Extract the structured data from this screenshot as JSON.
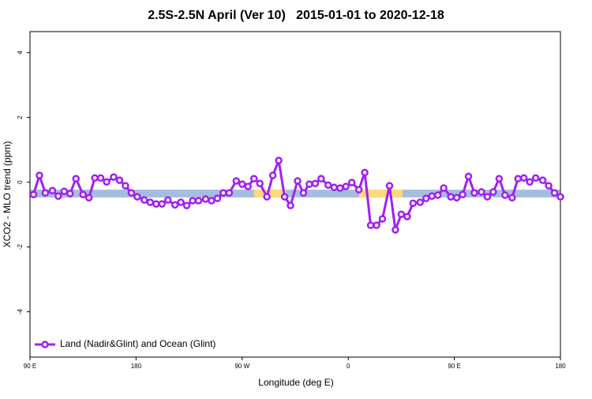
{
  "chart_data": {
    "type": "line",
    "title": "2.5S-2.5N April (Ver 10)   2015-01-01 to 2020-12-18",
    "x_label": "Longitude (deg E)",
    "y_label": "XCO2 - MLO trend (ppm)",
    "xlim": [
      90,
      540
    ],
    "ylim": [
      -5.4,
      4.65
    ],
    "xticks": [
      {
        "value": 90,
        "label": "90 E"
      },
      180,
      {
        "value": 270,
        "label": "90 W"
      },
      {
        "value": 360,
        "label": "0"
      },
      {
        "value": 450,
        "label": "90 E"
      },
      {
        "value": 540,
        "label": "180"
      }
    ],
    "yticks": [
      -4,
      -2,
      0,
      2,
      4
    ],
    "legend_position": "bottom-left",
    "surface_band": {
      "ylim": [
        -0.47,
        -0.23
      ],
      "ocean_color": "#a5bddf",
      "land_color": "#ffd97a",
      "land": [
        [
          280,
          307
        ],
        [
          369,
          406
        ]
      ]
    },
    "x": [
      93,
      98,
      103,
      109,
      114,
      119,
      124,
      129,
      135,
      140,
      145,
      150,
      155,
      161,
      166,
      171,
      176,
      181,
      187,
      192,
      197,
      202,
      207,
      213,
      218,
      223,
      228,
      233,
      239,
      244,
      249,
      254,
      259,
      265,
      270,
      275,
      280,
      285,
      291,
      296,
      301,
      306,
      311,
      317,
      322,
      327,
      332,
      337,
      343,
      348,
      353,
      358,
      363,
      369,
      374,
      379,
      384,
      389,
      395,
      400,
      405,
      410,
      415,
      421,
      426,
      431,
      436,
      441,
      447,
      452,
      457,
      462,
      467,
      473,
      478,
      483,
      488,
      493,
      499,
      504,
      509,
      514,
      519,
      525,
      530,
      535,
      540
    ],
    "series": [
      {
        "name": "Land (Nadir&Glint) and Ocean (Glint)",
        "color": "#a020f0",
        "values": [
          -0.38,
          0.21,
          -0.33,
          -0.26,
          -0.43,
          -0.28,
          -0.35,
          0.11,
          -0.38,
          -0.48,
          0.13,
          0.13,
          0.01,
          0.16,
          0.06,
          -0.11,
          -0.33,
          -0.45,
          -0.55,
          -0.62,
          -0.67,
          -0.67,
          -0.55,
          -0.7,
          -0.62,
          -0.72,
          -0.57,
          -0.57,
          -0.52,
          -0.57,
          -0.5,
          -0.33,
          -0.33,
          0.04,
          -0.06,
          -0.13,
          0.11,
          -0.04,
          -0.45,
          0.21,
          0.67,
          -0.45,
          -0.72,
          0.04,
          -0.33,
          -0.06,
          -0.04,
          0.11,
          -0.09,
          -0.16,
          -0.18,
          -0.13,
          -0.01,
          -0.23,
          0.3,
          -1.33,
          -1.33,
          -1.13,
          -0.11,
          -1.47,
          -0.99,
          -1.06,
          -0.65,
          -0.62,
          -0.5,
          -0.43,
          -0.4,
          -0.18,
          -0.45,
          -0.48,
          -0.38,
          0.18,
          -0.33,
          -0.3,
          -0.45,
          -0.3,
          0.11,
          -0.4,
          -0.48,
          0.11,
          0.13,
          0.01,
          0.13,
          0.06,
          -0.11,
          -0.33,
          -0.45
        ]
      }
    ]
  }
}
